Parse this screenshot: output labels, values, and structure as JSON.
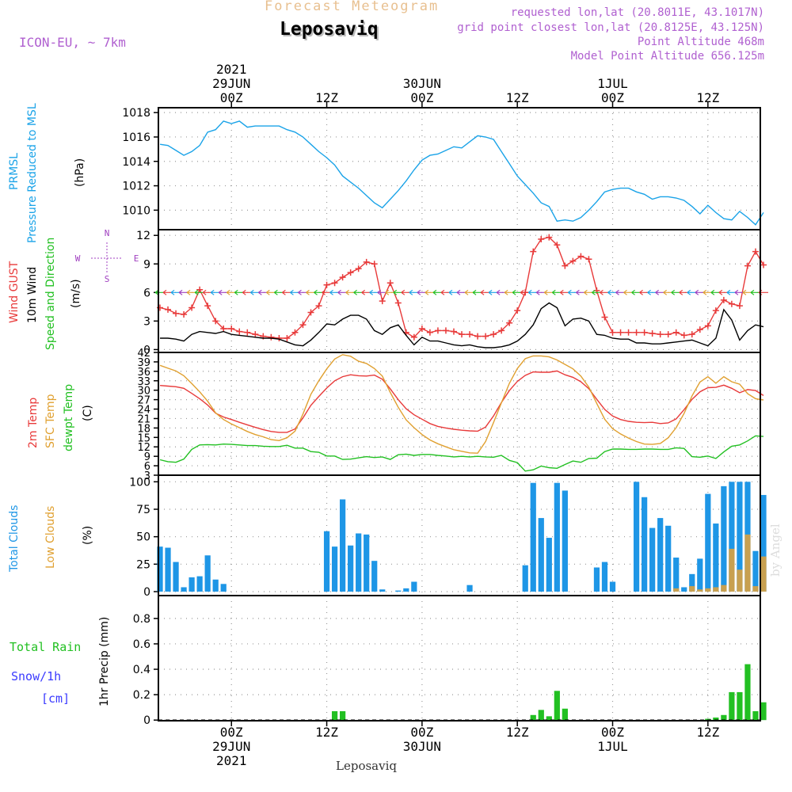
{
  "header": {
    "product": "Forecast Meteogram",
    "location": "Leposaviq",
    "model": "ICON-EU, ~ 7km",
    "requested": "requested lon,lat (20.8011E, 43.1017N)",
    "grid": "grid point closest lon,lat (20.8125E, 43.125N)",
    "altitude": "Point Altitude 468m",
    "model_altitude": "Model Point Altitude 656.125m",
    "footer": "Leposaviq",
    "credit": "by Angel"
  },
  "colors": {
    "prmsl": "#1aa3e8",
    "gust": "#e83a3a",
    "wind": "#000000",
    "direction": "#22c022",
    "t2m": "#e83a3a",
    "sfc": "#e0a030",
    "dewpt": "#22c022",
    "total_clouds": "#1e96e6",
    "low_clouds": "#c8a050",
    "rain": "#22c022",
    "snow": "#3a3aff",
    "compass": "#a040c0"
  },
  "chart_data": {
    "type": "meteogram",
    "time": {
      "start": "2021-06-28 15Z",
      "step_hours": 1,
      "top_ticks": [
        {
          "hour": 9,
          "lines": [
            "2021",
            "29JUN",
            "00Z"
          ]
        },
        {
          "hour": 21,
          "lines": [
            "12Z"
          ]
        },
        {
          "hour": 33,
          "lines": [
            "30JUN",
            "00Z"
          ]
        },
        {
          "hour": 45,
          "lines": [
            "12Z"
          ]
        },
        {
          "hour": 57,
          "lines": [
            "1JUL",
            "00Z"
          ]
        },
        {
          "hour": 69,
          "lines": [
            "12Z"
          ]
        }
      ],
      "bottom_ticks": [
        {
          "hour": 9,
          "lines": [
            "00Z",
            "29JUN",
            "2021"
          ]
        },
        {
          "hour": 21,
          "lines": [
            "12Z"
          ]
        },
        {
          "hour": 33,
          "lines": [
            "00Z",
            "30JUN"
          ]
        },
        {
          "hour": 45,
          "lines": [
            "12Z"
          ]
        },
        {
          "hour": 57,
          "lines": [
            "00Z",
            "1JUL"
          ]
        },
        {
          "hour": 69,
          "lines": [
            "12Z"
          ]
        }
      ],
      "range": [
        -0.2,
        75.6
      ]
    },
    "panels": [
      {
        "id": "pressure",
        "type": "line",
        "labels": [
          "PRMSL",
          "Pressure Reduced to MSL"
        ],
        "unit": "(hPa)",
        "ylim": [
          1008.4,
          1018.4
        ],
        "yticks": [
          1010,
          1012,
          1014,
          1016,
          1018
        ],
        "series": [
          {
            "name": "PRMSL",
            "color_key": "prmsl",
            "values": [
              1015.4,
              1015.3,
              1014.9,
              1014.5,
              1014.8,
              1015.3,
              1016.4,
              1016.6,
              1017.3,
              1017.1,
              1017.3,
              1016.8,
              1016.9,
              1016.9,
              1016.9,
              1016.9,
              1016.6,
              1016.4,
              1016.0,
              1015.4,
              1014.8,
              1014.3,
              1013.7,
              1012.8,
              1012.3,
              1011.8,
              1011.2,
              1010.6,
              1010.2,
              1010.9,
              1011.6,
              1012.4,
              1013.3,
              1014.1,
              1014.5,
              1014.6,
              1014.9,
              1015.2,
              1015.1,
              1015.6,
              1016.1,
              1016.0,
              1015.8,
              1014.8,
              1013.8,
              1012.8,
              1012.1,
              1011.4,
              1010.6,
              1010.3,
              1009.1,
              1009.2,
              1009.1,
              1009.4,
              1010.0,
              1010.7,
              1011.5,
              1011.7,
              1011.8,
              1011.8,
              1011.5,
              1011.3,
              1010.9,
              1011.1,
              1011.1,
              1011.0,
              1010.8,
              1010.3,
              1009.7,
              1010.4,
              1009.8,
              1009.3,
              1009.2,
              1009.9,
              1009.4,
              1008.8,
              1009.8
            ]
          }
        ]
      },
      {
        "id": "wind",
        "type": "line",
        "labels": [
          "Wind GUST",
          "10m Wind",
          "Speed and Direction"
        ],
        "label_color_keys": [
          "gust",
          "wind",
          "direction"
        ],
        "unit": "(m/s)",
        "ylim": [
          -0.3,
          12.6
        ],
        "yticks": [
          0,
          3,
          6,
          9,
          12
        ],
        "compass": {
          "n": "N",
          "s": "S",
          "e": "E",
          "w": "W"
        },
        "series": [
          {
            "name": "Wind GUST",
            "color_key": "gust",
            "marker": "+",
            "values": [
              4.4,
              4.2,
              3.8,
              3.7,
              4.4,
              6.3,
              4.6,
              3.0,
              2.2,
              2.2,
              1.9,
              1.8,
              1.6,
              1.4,
              1.3,
              1.2,
              1.2,
              1.8,
              2.6,
              3.9,
              4.6,
              6.8,
              7.0,
              7.6,
              8.1,
              8.5,
              9.2,
              9.0,
              5.1,
              7.0,
              4.9,
              1.8,
              1.3,
              2.2,
              1.8,
              2.0,
              2.0,
              1.9,
              1.6,
              1.6,
              1.4,
              1.4,
              1.6,
              2.0,
              2.8,
              4.1,
              6.0,
              10.3,
              11.6,
              11.8,
              11.0,
              8.8,
              9.3,
              9.8,
              9.5,
              6.2,
              3.4,
              1.8,
              1.8,
              1.8,
              1.8,
              1.8,
              1.7,
              1.6,
              1.6,
              1.8,
              1.5,
              1.6,
              2.1,
              2.5,
              4.1,
              5.2,
              4.8,
              4.6,
              8.8,
              10.3,
              8.9
            ]
          },
          {
            "name": "10m Wind",
            "color_key": "wind",
            "values": [
              1.2,
              1.2,
              1.1,
              0.9,
              1.6,
              1.9,
              1.8,
              1.7,
              1.9,
              1.6,
              1.5,
              1.4,
              1.3,
              1.2,
              1.2,
              1.1,
              0.8,
              0.5,
              0.4,
              1.0,
              1.8,
              2.7,
              2.6,
              3.2,
              3.6,
              3.6,
              3.2,
              2.0,
              1.6,
              2.3,
              2.6,
              1.5,
              0.5,
              1.3,
              0.9,
              0.9,
              0.7,
              0.5,
              0.4,
              0.5,
              0.3,
              0.2,
              0.2,
              0.3,
              0.5,
              0.9,
              1.6,
              2.6,
              4.3,
              4.9,
              4.4,
              2.5,
              3.2,
              3.3,
              3.0,
              1.6,
              1.5,
              1.2,
              1.1,
              1.1,
              0.7,
              0.7,
              0.6,
              0.6,
              0.7,
              0.8,
              0.9,
              1.0,
              0.7,
              0.4,
              1.2,
              4.2,
              3.1,
              1.0,
              2.0,
              2.6,
              2.4
            ]
          }
        ],
        "direction_arrow_color_keys": [
          "direction",
          "gust",
          "prmsl",
          "compass",
          "sfc"
        ]
      },
      {
        "id": "temperature",
        "type": "line",
        "labels": [
          "2m Temp",
          "SFC Temp",
          "dewpt Temp"
        ],
        "label_color_keys": [
          "t2m",
          "sfc",
          "dewpt"
        ],
        "unit": "(C)",
        "ylim": [
          3,
          42
        ],
        "yticks": [
          3,
          6,
          9,
          12,
          15,
          18,
          21,
          24,
          27,
          30,
          33,
          36,
          39,
          42
        ],
        "series": [
          {
            "name": "2m Temp",
            "color_key": "t2m",
            "values": [
              31.5,
              31.3,
              31.1,
              30.6,
              29.0,
              27.3,
              25.3,
              22.7,
              21.5,
              20.7,
              19.8,
              19.0,
              18.2,
              17.5,
              16.9,
              16.6,
              16.6,
              17.7,
              21.2,
              25.2,
              28.0,
              30.7,
              33.0,
              34.3,
              34.9,
              34.6,
              34.5,
              34.8,
              33.5,
              30.4,
              27.0,
              24.1,
              22.2,
              20.8,
              19.4,
              18.5,
              18.0,
              17.6,
              17.3,
              17.1,
              17.0,
              18.3,
              21.8,
              26.1,
              29.9,
              32.8,
              34.7,
              35.8,
              35.7,
              35.7,
              36.1,
              34.9,
              34.1,
              32.7,
              30.5,
              27.1,
              23.9,
              21.8,
              20.7,
              20.1,
              19.8,
              19.7,
              19.8,
              19.4,
              19.6,
              20.9,
              23.8,
              27.1,
              29.5,
              30.8,
              30.9,
              31.6,
              30.6,
              29.2,
              30.2,
              29.9,
              28.3
            ]
          },
          {
            "name": "SFC Temp",
            "color_key": "sfc",
            "values": [
              37.9,
              37.0,
              36.1,
              34.6,
              32.1,
              29.5,
              26.5,
              22.8,
              20.7,
              19.3,
              18.1,
              16.9,
              15.9,
              15.2,
              14.3,
              14.0,
              14.9,
              17.0,
              22.4,
              28.7,
              33.0,
              36.8,
              39.9,
              41.3,
              40.8,
              39.2,
              38.5,
              36.9,
              34.5,
              29.3,
              24.6,
              20.6,
              18.1,
              15.9,
              14.2,
              13.0,
              12.0,
              11.1,
              10.6,
              10.1,
              10.0,
              13.7,
              19.7,
              26.0,
              32.2,
              36.9,
              40.0,
              40.9,
              40.9,
              40.6,
              39.6,
              38.2,
              36.8,
              34.5,
              31.0,
              25.8,
              20.8,
              17.8,
              16.1,
              14.8,
              13.7,
              12.9,
              12.8,
              13.1,
              14.9,
              18.1,
              22.6,
              28.2,
              32.6,
              34.3,
              32.2,
              34.3,
              32.7,
              31.9,
              28.9,
              27.3,
              26.9
            ]
          },
          {
            "name": "dewpt Temp",
            "color_key": "dewpt",
            "values": [
              7.9,
              7.3,
              7.1,
              8.1,
              11.2,
              12.6,
              12.7,
              12.6,
              12.9,
              12.8,
              12.6,
              12.4,
              12.4,
              12.2,
              12.1,
              12.1,
              12.5,
              11.6,
              11.6,
              10.5,
              10.3,
              9.1,
              9.1,
              8.0,
              8.1,
              8.5,
              8.9,
              8.6,
              8.8,
              8.0,
              9.5,
              9.7,
              9.3,
              9.6,
              9.6,
              9.3,
              9.1,
              8.8,
              9.0,
              8.8,
              9.0,
              8.8,
              8.7,
              9.3,
              7.7,
              7.0,
              4.3,
              4.7,
              5.9,
              5.4,
              5.2,
              6.4,
              7.5,
              7.1,
              8.3,
              8.4,
              10.5,
              11.3,
              11.3,
              11.2,
              11.2,
              11.3,
              11.3,
              11.2,
              11.2,
              11.7,
              11.5,
              8.9,
              8.7,
              9.1,
              8.3,
              10.4,
              12.2,
              12.6,
              13.9,
              15.5,
              15.3
            ]
          }
        ]
      },
      {
        "id": "clouds",
        "type": "bar",
        "labels": [
          "Total Clouds",
          "Low Clouds"
        ],
        "label_color_keys": [
          "total_clouds",
          "low_clouds"
        ],
        "unit": "(%)",
        "ylim": [
          -3.6,
          106
        ],
        "yticks": [
          0,
          25,
          50,
          75,
          100
        ],
        "series": [
          {
            "name": "Total Clouds",
            "color_key": "total_clouds",
            "values": [
              41,
              40,
              27,
              4,
              13,
              14,
              33,
              11,
              7,
              0,
              0,
              0,
              0,
              0,
              0,
              0,
              0,
              0,
              0,
              0,
              0,
              55,
              41,
              84,
              42,
              53,
              52,
              28,
              2,
              0,
              1,
              3,
              9,
              0,
              0,
              0,
              0,
              0,
              0,
              6,
              0,
              0,
              0,
              0,
              0,
              0,
              24,
              99,
              67,
              49,
              99,
              92,
              0,
              0,
              0,
              22,
              27,
              9,
              0,
              0,
              100,
              86,
              58,
              67,
              60,
              31,
              4,
              16,
              30,
              89,
              62,
              96,
              100,
              100,
              100,
              37,
              88
            ]
          },
          {
            "name": "Low Clouds",
            "color_key": "low_clouds",
            "values": [
              0,
              0,
              0,
              0,
              0,
              0,
              0,
              0,
              0,
              0,
              0,
              0,
              0,
              0,
              0,
              0,
              0,
              0,
              0,
              0,
              0,
              0,
              0,
              0,
              0,
              0,
              0,
              0,
              0,
              0,
              0,
              0,
              0,
              0,
              0,
              0,
              0,
              0,
              0,
              0,
              0,
              0,
              0,
              0,
              0,
              0,
              0,
              0,
              0,
              0,
              0,
              0,
              0,
              0,
              0,
              0,
              0,
              0,
              0,
              0,
              0,
              0,
              0,
              0,
              0,
              3,
              0,
              5,
              2,
              3,
              4,
              6,
              39,
              20,
              52,
              5,
              32
            ]
          }
        ]
      },
      {
        "id": "precip",
        "type": "bar",
        "labels": [
          "Total  Rain",
          "Snow/1h",
          "[cm]"
        ],
        "label_color_keys": [
          "rain",
          "snow",
          "snow"
        ],
        "ylabel": "1hr Precip (mm)",
        "ylim": [
          -0.005,
          0.98
        ],
        "yticks": [
          0,
          0.2,
          0.4,
          0.6,
          0.8
        ],
        "series": [
          {
            "name": "Total Rain",
            "color_key": "rain",
            "values": [
              0,
              0,
              0,
              0,
              0,
              0,
              0,
              0,
              0,
              0,
              0,
              0,
              0,
              0,
              0,
              0,
              0,
              0,
              0,
              0,
              0,
              0,
              0.07,
              0.07,
              0,
              0,
              0,
              0,
              0,
              0,
              0,
              0,
              0,
              0,
              0,
              0,
              0,
              0,
              0,
              0,
              0,
              0,
              0,
              0,
              0,
              0,
              0,
              0.04,
              0.08,
              0.03,
              0.23,
              0.09,
              0,
              0,
              0,
              0,
              0,
              0,
              0,
              0,
              0,
              0,
              0,
              0,
              0,
              0,
              0,
              0,
              0,
              0.01,
              0.02,
              0.04,
              0.22,
              0.22,
              0.44,
              0.07,
              0.14
            ]
          }
        ]
      }
    ]
  }
}
